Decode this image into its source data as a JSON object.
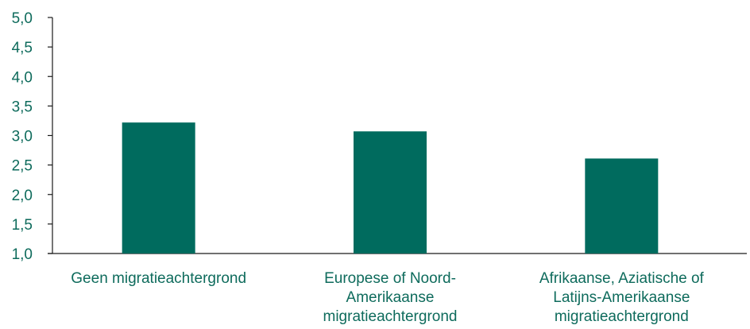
{
  "chart_data": {
    "type": "bar",
    "categories": [
      [
        "Geen migratieachtergrond"
      ],
      [
        "Europese of Noord-",
        "Amerikaanse",
        "migratieachtergrond"
      ],
      [
        "Afrikaanse, Aziatische of",
        "Latijns-Amerikaanse",
        "migratieachtergrond"
      ]
    ],
    "values": [
      3.22,
      3.07,
      2.61
    ],
    "ylim": [
      1.0,
      5.0
    ],
    "yticks": [
      "1,0",
      "1,5",
      "2,0",
      "2,5",
      "3,0",
      "3,5",
      "4,0",
      "4,5",
      "5,0"
    ],
    "bar_color": "#006b5e",
    "text_color": "#0e6b5c",
    "axis_color": "#1a1a1a",
    "grid": false,
    "legend": "none"
  }
}
